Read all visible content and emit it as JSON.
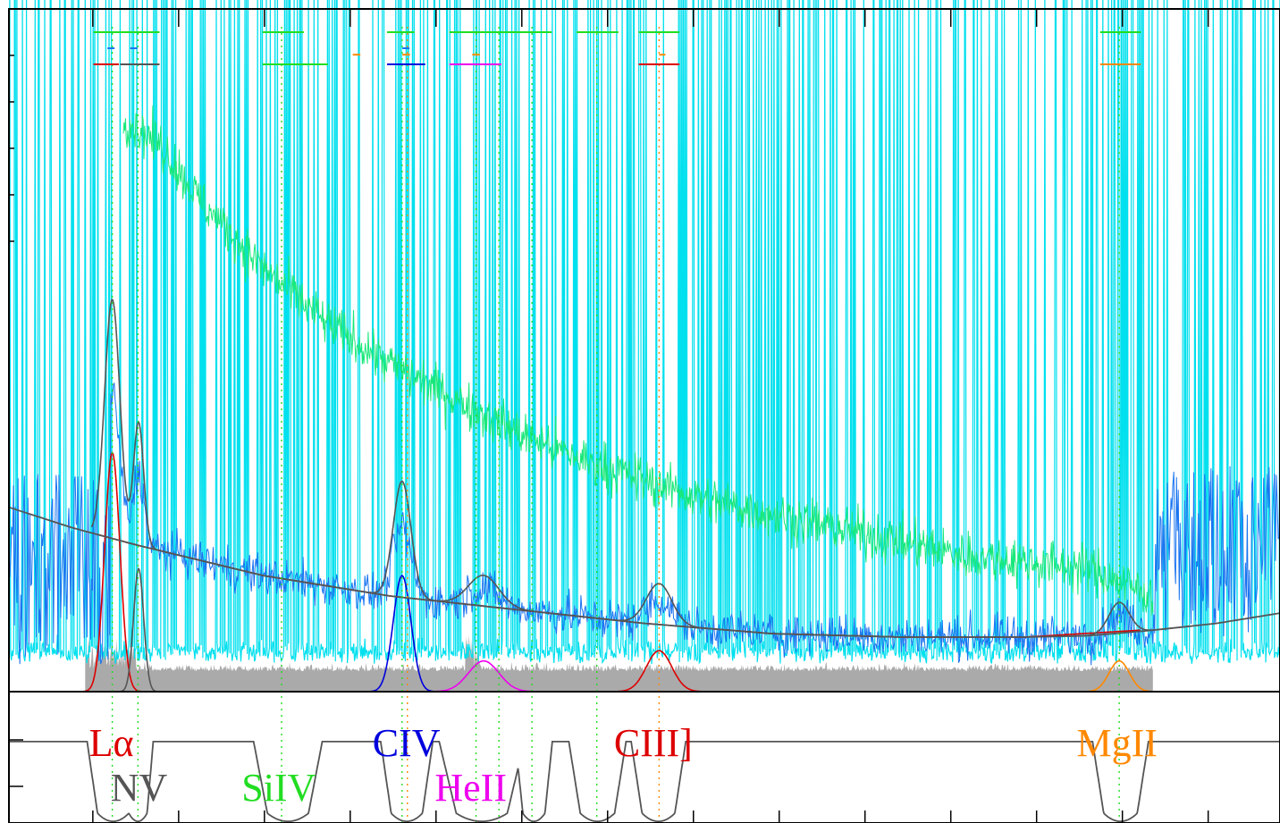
{
  "chart_data": [
    {
      "type": "line",
      "panel": "spectrum",
      "title": "",
      "xlabel": "",
      "ylabel": "",
      "grid": false,
      "legend": "none",
      "x_range": [
        0,
        1
      ],
      "y_range": [
        0,
        1
      ],
      "x_scale": "linear",
      "series": [
        {
          "key": "total_flux",
          "color": "#00e0ee",
          "style": "noisy spectrum with dense spikes"
        },
        {
          "key": "smoothed_flux",
          "color": "#19e87a",
          "style": "noisy line",
          "x": [
            0.09,
            0.12,
            0.15,
            0.2,
            0.25,
            0.3,
            0.35,
            0.4,
            0.45,
            0.5,
            0.55,
            0.6,
            0.65,
            0.7,
            0.75,
            0.8,
            0.85,
            0.9
          ],
          "y": [
            0.84,
            0.8,
            0.72,
            0.62,
            0.54,
            0.48,
            0.43,
            0.38,
            0.34,
            0.31,
            0.28,
            0.26,
            0.24,
            0.22,
            0.2,
            0.19,
            0.18,
            0.14
          ]
        },
        {
          "key": "observed_flux",
          "color": "#1a74f0",
          "style": "noisy line"
        },
        {
          "key": "error",
          "color": "#aaaaaa",
          "style": "noisy filled area near zero"
        },
        {
          "key": "continuum",
          "color": "#555555",
          "x": [
            0,
            0.05,
            0.1,
            0.2,
            0.3,
            0.4,
            0.5,
            0.6,
            0.7,
            0.8,
            0.85,
            0.9,
            0.95,
            1
          ],
          "y": [
            0.27,
            0.24,
            0.215,
            0.17,
            0.14,
            0.12,
            0.1,
            0.085,
            0.08,
            0.08,
            0.082,
            0.09,
            0.1,
            0.115
          ]
        },
        {
          "key": "power_law",
          "color": "#dd0000",
          "x": [
            0.07,
            0.1,
            0.2,
            0.3,
            0.4,
            0.5,
            0.6,
            0.7,
            0.8,
            0.89
          ],
          "y": [
            0.23,
            0.215,
            0.17,
            0.14,
            0.12,
            0.1,
            0.085,
            0.08,
            0.08,
            0.09
          ]
        },
        {
          "key": "model_total",
          "color": "#555555",
          "style": "peaked lines at emission features"
        }
      ],
      "emission_components": [
        {
          "line": "Lyα",
          "color": "#dd0000",
          "center": 0.0813,
          "height": 0.35,
          "width": 0.006
        },
        {
          "line": "NV",
          "color": "#555555",
          "center": 0.102,
          "height": 0.18,
          "width": 0.004
        },
        {
          "line": "CIV",
          "color": "#0000dd",
          "center": 0.3093,
          "height": 0.17,
          "width": 0.007
        },
        {
          "line": "HeII",
          "color": "#ee00ee",
          "center": 0.3735,
          "height": 0.045,
          "width": 0.012
        },
        {
          "line": "CIII]",
          "color": "#dd0000",
          "center": 0.5115,
          "height": 0.06,
          "width": 0.01
        },
        {
          "line": "MgII",
          "color": "#ff8800",
          "center": 0.8735,
          "height": 0.045,
          "width": 0.008
        }
      ],
      "fit_window_markers": [
        {
          "color": "#22dd22",
          "x": [
            0.0665,
            0.1185
          ],
          "level": 0
        },
        {
          "color": "#22dd22",
          "x": [
            0.1995,
            0.232
          ],
          "level": 0
        },
        {
          "color": "#22dd22",
          "x": [
            0.2975,
            0.319
          ],
          "level": 0
        },
        {
          "color": "#22dd22",
          "x": [
            0.3465,
            0.427
          ],
          "level": 0
        },
        {
          "color": "#22dd22",
          "x": [
            0.4465,
            0.4795
          ],
          "level": 0
        },
        {
          "color": "#22dd22",
          "x": [
            0.4955,
            0.5275
          ],
          "level": 0
        },
        {
          "color": "#22dd22",
          "x": [
            0.8585,
            0.8905
          ],
          "level": 0
        },
        {
          "color": "#1a74f0",
          "x": [
            0.0775,
            0.0865
          ],
          "level": 1,
          "dashed": true
        },
        {
          "color": "#1a74f0",
          "x": [
            0.0955,
            0.1055
          ],
          "level": 1,
          "dashed": true
        },
        {
          "color": "#1a74f0",
          "x": [
            0.3095,
            0.3175
          ],
          "level": 1,
          "dashed": true
        },
        {
          "color": "#ff8800",
          "x": [
            0.2705,
            0.2765
          ],
          "level": 1.4
        },
        {
          "color": "#ff8800",
          "x": [
            0.3095,
            0.3155
          ],
          "level": 1.4
        },
        {
          "color": "#ff8800",
          "x": [
            0.3645,
            0.3705
          ],
          "level": 1.4
        },
        {
          "color": "#ff8800",
          "x": [
            0.5115,
            0.5165
          ],
          "level": 1.4
        },
        {
          "color": "#dd0000",
          "x": [
            0.0665,
            0.0865
          ],
          "level": 2
        },
        {
          "color": "#555555",
          "x": [
            0.0875,
            0.1185
          ],
          "level": 2
        },
        {
          "color": "#22dd22",
          "x": [
            0.1995,
            0.251
          ],
          "level": 2
        },
        {
          "color": "#0000dd",
          "x": [
            0.2975,
            0.3275
          ],
          "level": 2
        },
        {
          "color": "#ee00ee",
          "x": [
            0.3465,
            0.3875
          ],
          "level": 2
        },
        {
          "color": "#dd0000",
          "x": [
            0.4955,
            0.5275
          ],
          "level": 2
        },
        {
          "color": "#ff8800",
          "x": [
            0.8585,
            0.8905
          ],
          "level": 2
        }
      ],
      "line_markers": [
        {
          "x": 0.0813,
          "color": "#22dd22"
        },
        {
          "x": 0.1015,
          "color": "#22dd22"
        },
        {
          "x": 0.2145,
          "color": "#22dd22"
        },
        {
          "x": 0.3093,
          "color": "#22dd22"
        },
        {
          "x": 0.3135,
          "color": "#ff8800"
        },
        {
          "x": 0.3675,
          "color": "#22dd22"
        },
        {
          "x": 0.3855,
          "color": "#22dd22"
        },
        {
          "x": 0.4115,
          "color": "#22dd22"
        },
        {
          "x": 0.4625,
          "color": "#22dd22"
        },
        {
          "x": 0.5115,
          "color": "#ff8800"
        },
        {
          "x": 0.8735,
          "color": "#22dd22"
        }
      ]
    },
    {
      "type": "line",
      "panel": "mask",
      "title": "",
      "xlabel": "",
      "ylabel": "",
      "grid": false,
      "legend": "none",
      "x_range": [
        0,
        1
      ],
      "y_range": [
        0,
        1
      ],
      "series": [
        {
          "key": "line_mask",
          "color": "#555555",
          "baseline": 0.62,
          "dips": [
            {
              "x": [
                0.0675,
                0.0965
              ]
            },
            {
              "x": 0.1015
            },
            {
              "x": [
                0.1985,
                0.2405
              ]
            },
            {
              "x": [
                0.2985,
                0.3275
              ]
            },
            {
              "x": [
                0.3445,
                0.3995
              ]
            },
            {
              "x": [
                0.4045,
                0.4215
              ]
            },
            {
              "x": [
                0.4465,
                0.4795
              ]
            },
            {
              "x": [
                0.4955,
                0.5265
              ]
            },
            {
              "x": [
                0.8585,
                0.8905
              ]
            }
          ]
        }
      ],
      "labels": [
        {
          "text": "Lα",
          "color": "#dd0000",
          "x": 0.063,
          "row": "upper"
        },
        {
          "text": "NV",
          "color": "#555555",
          "x": 0.08,
          "row": "lower"
        },
        {
          "text": "SiIV",
          "color": "#22dd22",
          "x": 0.183,
          "row": "lower"
        },
        {
          "text": "CIV",
          "color": "#0000dd",
          "x": 0.286,
          "row": "upper"
        },
        {
          "text": "HeII",
          "color": "#ee00ee",
          "x": 0.335,
          "row": "lower"
        },
        {
          "text": "CIII]",
          "color": "#dd0000",
          "x": 0.476,
          "row": "upper"
        },
        {
          "text": "MgII",
          "color": "#ff8800",
          "x": 0.84,
          "row": "upper"
        }
      ]
    }
  ],
  "colors": {
    "frame": "#000000",
    "background": "#ffffff"
  }
}
